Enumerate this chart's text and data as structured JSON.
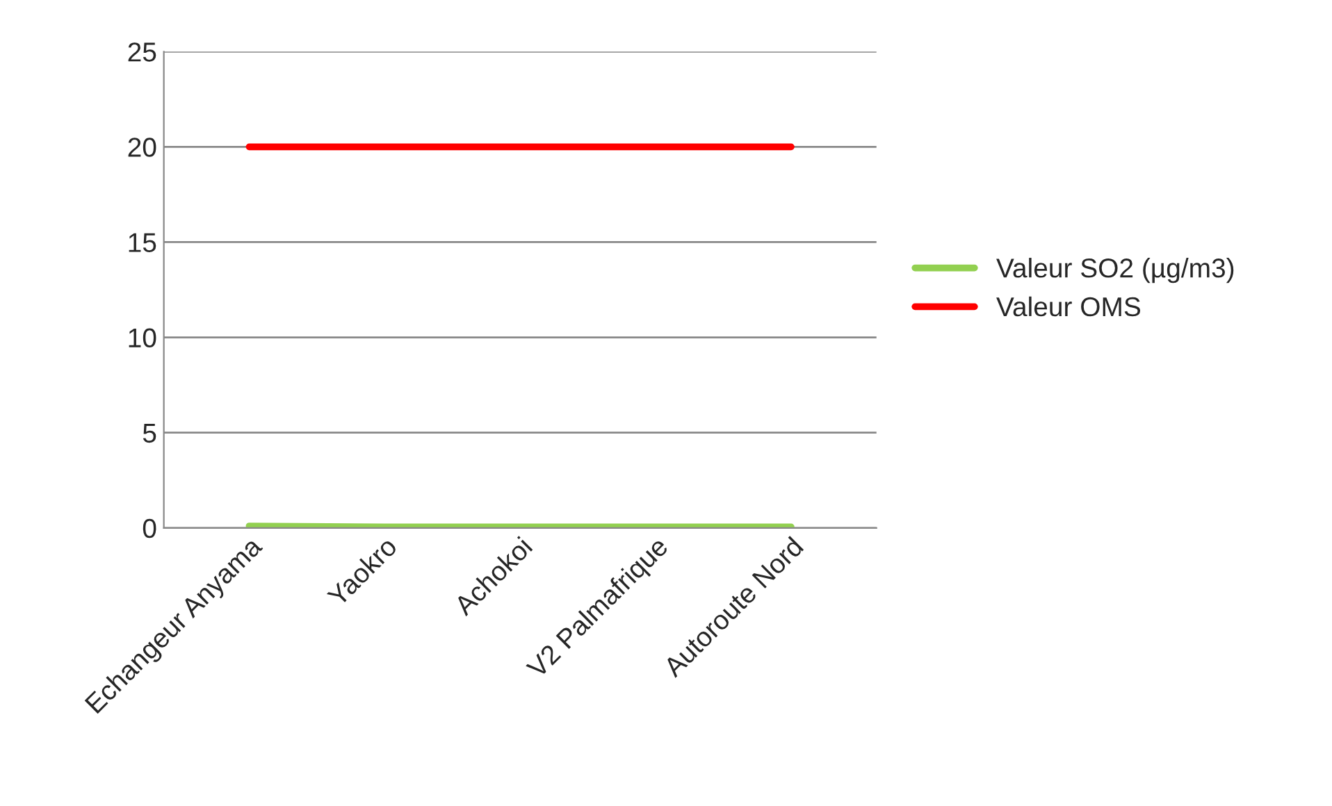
{
  "chart_data": {
    "type": "line",
    "categories": [
      "Echangeur Anyama",
      "Yaokro",
      "Achokoi",
      "V2 Palmafrique",
      "Autoroute Nord"
    ],
    "series": [
      {
        "name": "Valeur SO2 (µg/m3)",
        "color": "#92d050",
        "values": [
          0.1,
          0.05,
          0.05,
          0.05,
          0.05
        ]
      },
      {
        "name": "Valeur OMS",
        "color": "#ff0000",
        "values": [
          20,
          20,
          20,
          20,
          20
        ]
      }
    ],
    "ylim": [
      0,
      25
    ],
    "yticks": [
      0,
      5,
      10,
      15,
      20,
      25
    ],
    "grid": "y",
    "legend": "right",
    "marker": "none",
    "line_style": "solid"
  }
}
